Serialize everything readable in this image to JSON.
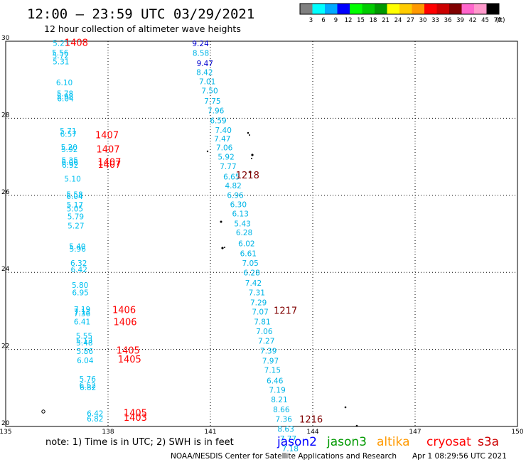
{
  "header": {
    "title": "12:00 – 23:59 UTC 03/29/2021",
    "subtitle": "12 hour collection of altimeter wave heights"
  },
  "legend": {
    "unit": "(ft)",
    "colors": [
      "#808080",
      "#00ffff",
      "#00aaff",
      "#0000ff",
      "#00ff00",
      "#00cc00",
      "#009900",
      "#ffff00",
      "#ffcc00",
      "#ff9900",
      "#ff0000",
      "#cc0000",
      "#800000",
      "#ff66cc",
      "#ff99cc",
      "#000000"
    ],
    "ticks": [
      "3",
      "6",
      "9",
      "12",
      "15",
      "18",
      "21",
      "24",
      "27",
      "30",
      "33",
      "36",
      "39",
      "42",
      "45",
      "70"
    ]
  },
  "map": {
    "lon_ticks": [
      "135",
      "138",
      "141",
      "144",
      "147",
      "150"
    ],
    "lat_ticks": [
      "30",
      "28",
      "26",
      "24",
      "22",
      "20"
    ]
  },
  "tracks": [
    {
      "swh_color": "#00c0f0",
      "swh": [
        {
          "lon": 136.62,
          "lat": 29.88,
          "v": "5.23"
        },
        {
          "lon": 136.6,
          "lat": 29.63,
          "v": "5.56"
        },
        {
          "lon": 136.61,
          "lat": 29.56,
          "v": "5.72"
        },
        {
          "lon": 136.62,
          "lat": 29.4,
          "v": "5.31"
        },
        {
          "lon": 136.72,
          "lat": 28.86,
          "v": "6.10"
        },
        {
          "lon": 136.74,
          "lat": 28.57,
          "v": "5.78"
        },
        {
          "lon": 136.74,
          "lat": 28.5,
          "v": "5.98"
        },
        {
          "lon": 136.75,
          "lat": 28.44,
          "v": "6.04"
        },
        {
          "lon": 136.83,
          "lat": 27.6,
          "v": "5.71"
        },
        {
          "lon": 136.84,
          "lat": 27.52,
          "v": "6.57"
        },
        {
          "lon": 136.86,
          "lat": 27.18,
          "v": "5.20"
        },
        {
          "lon": 136.87,
          "lat": 27.12,
          "v": "5.92"
        },
        {
          "lon": 136.88,
          "lat": 26.84,
          "v": "5.35"
        },
        {
          "lon": 136.88,
          "lat": 26.79,
          "v": "6.06"
        },
        {
          "lon": 136.89,
          "lat": 26.72,
          "v": "6.92"
        },
        {
          "lon": 136.96,
          "lat": 26.36,
          "v": "5.10"
        },
        {
          "lon": 137.02,
          "lat": 25.95,
          "v": "5.58"
        },
        {
          "lon": 137.02,
          "lat": 25.9,
          "v": "6.04"
        },
        {
          "lon": 137.03,
          "lat": 25.68,
          "v": "5.17"
        },
        {
          "lon": 137.03,
          "lat": 25.58,
          "v": "5.05"
        },
        {
          "lon": 137.05,
          "lat": 25.38,
          "v": "5.79"
        },
        {
          "lon": 137.06,
          "lat": 25.14,
          "v": "5.27"
        },
        {
          "lon": 137.1,
          "lat": 24.6,
          "v": "5.40"
        },
        {
          "lon": 137.11,
          "lat": 24.54,
          "v": "5.96"
        },
        {
          "lon": 137.14,
          "lat": 24.17,
          "v": "6.32"
        },
        {
          "lon": 137.15,
          "lat": 24.0,
          "v": "6.42"
        },
        {
          "lon": 137.18,
          "lat": 23.6,
          "v": "5.80"
        },
        {
          "lon": 137.19,
          "lat": 23.4,
          "v": "6.95"
        },
        {
          "lon": 137.24,
          "lat": 22.97,
          "v": "7.19"
        },
        {
          "lon": 137.24,
          "lat": 22.91,
          "v": "7.13"
        },
        {
          "lon": 137.24,
          "lat": 22.86,
          "v": "7.36"
        },
        {
          "lon": 137.24,
          "lat": 22.65,
          "v": "6.41"
        },
        {
          "lon": 137.3,
          "lat": 22.28,
          "v": "5.55"
        },
        {
          "lon": 137.3,
          "lat": 22.16,
          "v": "5.13"
        },
        {
          "lon": 137.31,
          "lat": 22.1,
          "v": "5.48"
        },
        {
          "lon": 137.32,
          "lat": 21.88,
          "v": "5.86"
        },
        {
          "lon": 137.33,
          "lat": 21.64,
          "v": "6.04"
        },
        {
          "lon": 137.4,
          "lat": 21.16,
          "v": "5.76"
        },
        {
          "lon": 137.4,
          "lat": 21.0,
          "v": "6.52"
        },
        {
          "lon": 137.41,
          "lat": 20.94,
          "v": "6.82"
        },
        {
          "lon": 137.62,
          "lat": 20.27,
          "v": "6.42"
        },
        {
          "lon": 137.62,
          "lat": 20.13,
          "v": "6.82"
        }
      ],
      "time_color": "#ff0000",
      "times": [
        {
          "lon": 137.07,
          "lat": 29.88,
          "v": "1408"
        },
        {
          "lon": 137.97,
          "lat": 27.48,
          "v": "1407"
        },
        {
          "lon": 138.0,
          "lat": 27.11,
          "v": "1407"
        },
        {
          "lon": 138.04,
          "lat": 26.78,
          "v": "1407"
        },
        {
          "lon": 138.04,
          "lat": 26.72,
          "v": "1407"
        },
        {
          "lon": 138.47,
          "lat": 22.94,
          "v": "1406"
        },
        {
          "lon": 138.5,
          "lat": 22.63,
          "v": "1406"
        },
        {
          "lon": 138.59,
          "lat": 21.89,
          "v": "1405"
        },
        {
          "lon": 138.63,
          "lat": 21.66,
          "v": "1405"
        },
        {
          "lon": 138.8,
          "lat": 20.27,
          "v": "1405"
        },
        {
          "lon": 138.8,
          "lat": 20.15,
          "v": "1403"
        }
      ]
    },
    {
      "swh_color": "#00b4e6",
      "swh": [
        {
          "lon": 140.71,
          "lat": 29.87,
          "v": "9.24",
          "color": "#0000d0"
        },
        {
          "lon": 140.72,
          "lat": 29.62,
          "v": "8.58"
        },
        {
          "lon": 140.84,
          "lat": 29.35,
          "v": "9.47",
          "color": "#0000d0"
        },
        {
          "lon": 140.83,
          "lat": 29.12,
          "v": "8.42"
        },
        {
          "lon": 140.91,
          "lat": 28.88,
          "v": "7.01"
        },
        {
          "lon": 140.98,
          "lat": 28.64,
          "v": "7.50"
        },
        {
          "lon": 141.06,
          "lat": 28.38,
          "v": "7.75"
        },
        {
          "lon": 141.16,
          "lat": 28.13,
          "v": "7.96"
        },
        {
          "lon": 141.23,
          "lat": 27.87,
          "v": "6.59"
        },
        {
          "lon": 141.38,
          "lat": 27.62,
          "v": "7.40"
        },
        {
          "lon": 141.35,
          "lat": 27.4,
          "v": "7.47"
        },
        {
          "lon": 141.41,
          "lat": 27.17,
          "v": "7.06"
        },
        {
          "lon": 141.46,
          "lat": 26.93,
          "v": "5.92"
        },
        {
          "lon": 141.52,
          "lat": 26.68,
          "v": "7.77"
        },
        {
          "lon": 141.62,
          "lat": 26.41,
          "v": "6.65"
        },
        {
          "lon": 141.67,
          "lat": 26.18,
          "v": "4.82"
        },
        {
          "lon": 141.73,
          "lat": 25.93,
          "v": "6.96"
        },
        {
          "lon": 141.82,
          "lat": 25.69,
          "v": "6.30"
        },
        {
          "lon": 141.88,
          "lat": 25.45,
          "v": "6.13"
        },
        {
          "lon": 141.94,
          "lat": 25.19,
          "v": "5.43"
        },
        {
          "lon": 141.99,
          "lat": 24.96,
          "v": "6.28"
        },
        {
          "lon": 142.06,
          "lat": 24.68,
          "v": "6.02"
        },
        {
          "lon": 142.11,
          "lat": 24.42,
          "v": "6.61"
        },
        {
          "lon": 142.17,
          "lat": 24.17,
          "v": "7.05"
        },
        {
          "lon": 142.21,
          "lat": 23.92,
          "v": "6.28"
        },
        {
          "lon": 142.26,
          "lat": 23.65,
          "v": "7.42"
        },
        {
          "lon": 142.36,
          "lat": 23.4,
          "v": "7.31"
        },
        {
          "lon": 142.41,
          "lat": 23.15,
          "v": "7.29"
        },
        {
          "lon": 142.46,
          "lat": 22.91,
          "v": "7.07"
        },
        {
          "lon": 142.52,
          "lat": 22.65,
          "v": "7.81"
        },
        {
          "lon": 142.58,
          "lat": 22.4,
          "v": "7.06"
        },
        {
          "lon": 142.64,
          "lat": 22.15,
          "v": "7.27"
        },
        {
          "lon": 142.7,
          "lat": 21.89,
          "v": "7.39"
        },
        {
          "lon": 142.76,
          "lat": 21.63,
          "v": "7.97"
        },
        {
          "lon": 142.82,
          "lat": 21.39,
          "v": "7.15"
        },
        {
          "lon": 142.89,
          "lat": 21.12,
          "v": "6.46"
        },
        {
          "lon": 142.96,
          "lat": 20.88,
          "v": "7.19"
        },
        {
          "lon": 143.02,
          "lat": 20.63,
          "v": "8.21"
        },
        {
          "lon": 143.08,
          "lat": 20.37,
          "v": "8.66"
        },
        {
          "lon": 143.15,
          "lat": 20.12,
          "v": "7.36"
        },
        {
          "lon": 143.21,
          "lat": 19.86,
          "v": "8.63"
        },
        {
          "lon": 143.28,
          "lat": 19.61,
          "v": "7.77"
        },
        {
          "lon": 143.34,
          "lat": 19.35,
          "v": "7.18"
        }
      ],
      "time_color": "#800000",
      "times": [
        {
          "lon": 142.09,
          "lat": 26.44,
          "v": "1218"
        },
        {
          "lon": 143.2,
          "lat": 22.92,
          "v": "1217"
        },
        {
          "lon": 143.95,
          "lat": 20.1,
          "v": "1216"
        }
      ]
    }
  ],
  "footer": {
    "note": "note:  1) Time is in UTC;  2) SWH is in feet",
    "satellites": [
      {
        "name": "jason2",
        "color": "#0000ff"
      },
      {
        "name": "jason3",
        "color": "#009900"
      },
      {
        "name": "altika",
        "color": "#ff9900"
      },
      {
        "name": "cryosat",
        "color": "#ff0000"
      },
      {
        "name": "s3a",
        "color": "#cc0000"
      }
    ],
    "credit": "NOAA/NESDIS Center for Satellite Applications and Research",
    "generated": "Apr  1 08:29:56 UTC 2021"
  }
}
